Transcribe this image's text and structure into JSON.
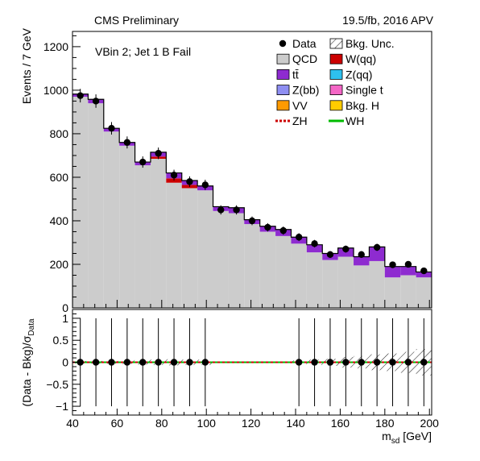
{
  "header": {
    "left": "CMS Preliminary",
    "right": "19.5/fb, 2016 APV"
  },
  "annotation": "VBin 2; Jet 1 B Fail",
  "legend": {
    "items": [
      {
        "label": "Data",
        "marker": "point",
        "color": "#000000"
      },
      {
        "label": "Bkg. Unc.",
        "marker": "hatch",
        "color": "#000000"
      },
      {
        "label": "QCD",
        "marker": "box",
        "color": "#cccccc"
      },
      {
        "label": "W(qq)",
        "marker": "box",
        "color": "#cc0000"
      },
      {
        "label": "tt̄",
        "marker": "box",
        "color": "#8e2bd0"
      },
      {
        "label": "Z(qq)",
        "marker": "box",
        "color": "#2ec0ee"
      },
      {
        "label": "Z(bb)",
        "marker": "box",
        "color": "#8e8ef2"
      },
      {
        "label": "Single t",
        "marker": "box",
        "color": "#f466c6"
      },
      {
        "label": "VV",
        "marker": "box",
        "color": "#ff9a00"
      },
      {
        "label": "Bkg. H",
        "marker": "box",
        "color": "#ffcc00"
      },
      {
        "label": "ZH",
        "marker": "dashline",
        "color": "#cc0000"
      },
      {
        "label": "WH",
        "marker": "line",
        "color": "#00bb00"
      }
    ]
  },
  "chart_data": [
    {
      "type": "bar",
      "stacked": true,
      "title": "",
      "xlabel": "",
      "ylabel": "Events / 7 GeV",
      "xlim": [
        40,
        201
      ],
      "ylim": [
        0,
        1270
      ],
      "yticks": [
        0,
        200,
        400,
        600,
        800,
        1000,
        1200
      ],
      "bin_edges": [
        40,
        47,
        54,
        61,
        68,
        75,
        82,
        89,
        96,
        103,
        110,
        117,
        124,
        131,
        138,
        145,
        152,
        159,
        166,
        173,
        180,
        187,
        194,
        201
      ],
      "series": [
        {
          "name": "QCD",
          "color": "#cccccc",
          "values": [
            970,
            940,
            810,
            745,
            655,
            685,
            575,
            550,
            540,
            445,
            435,
            385,
            350,
            330,
            295,
            255,
            220,
            235,
            195,
            215,
            140,
            150,
            140
          ]
        },
        {
          "name": "W(qq)",
          "color": "#cc0000",
          "values": [
            0,
            0,
            0,
            0,
            0,
            10,
            20,
            15,
            0,
            0,
            0,
            0,
            0,
            0,
            0,
            0,
            0,
            0,
            0,
            0,
            0,
            0,
            0
          ]
        },
        {
          "name": "tt̄",
          "color": "#8e2bd0",
          "values": [
            12,
            18,
            15,
            15,
            15,
            20,
            25,
            20,
            20,
            20,
            25,
            20,
            25,
            30,
            30,
            35,
            30,
            40,
            40,
            65,
            50,
            40,
            25
          ]
        }
      ],
      "data_points": {
        "name": "Data",
        "x": [
          43.5,
          50.5,
          57.5,
          64.5,
          71.5,
          78.5,
          85.5,
          92.5,
          99.5,
          106.5,
          113.5,
          120.5,
          127.5,
          134.5,
          141.5,
          148.5,
          155.5,
          162.5,
          169.5,
          176.5,
          183.5,
          190.5,
          197.5
        ],
        "y": [
          975,
          950,
          825,
          760,
          670,
          710,
          610,
          580,
          565,
          450,
          450,
          400,
          370,
          355,
          325,
          295,
          245,
          270,
          245,
          278,
          198,
          200,
          170
        ]
      }
    },
    {
      "type": "scatter",
      "title": "",
      "xlabel": "m_sd [GeV]",
      "ylabel": "(Data - Bkg)/σ_Data",
      "xlim": [
        40,
        201
      ],
      "ylim": [
        -1.2,
        1.2
      ],
      "yticks": [
        -1,
        -0.5,
        0,
        0.5,
        1
      ],
      "xticks": [
        40,
        60,
        80,
        100,
        120,
        140,
        160,
        180,
        200
      ],
      "points": {
        "x": [
          43.5,
          50.5,
          57.5,
          64.5,
          71.5,
          78.5,
          85.5,
          92.5,
          99.5,
          141.5,
          148.5,
          155.5,
          162.5,
          169.5,
          176.5,
          183.5,
          190.5,
          197.5
        ],
        "y": [
          0,
          0,
          0,
          0,
          0,
          0,
          0,
          0,
          0,
          0,
          0,
          0,
          0,
          0,
          0,
          0,
          0,
          0
        ],
        "err": [
          1,
          1,
          1,
          1,
          1,
          1,
          1,
          1,
          1,
          1,
          1,
          1,
          1,
          1,
          1,
          1,
          1,
          1
        ]
      },
      "unc_band": {
        "bin_edges": [
          40,
          47,
          54,
          61,
          68,
          75,
          82,
          89,
          96,
          103,
          110,
          117,
          124,
          131,
          138,
          145,
          152,
          159,
          166,
          173,
          180,
          187,
          194,
          201
        ],
        "halfwidth": [
          0.03,
          0.03,
          0.03,
          0.04,
          0.05,
          0.06,
          0.07,
          0.06,
          0.06,
          0,
          0,
          0,
          0,
          0,
          0.04,
          0.06,
          0.08,
          0.12,
          0.14,
          0.18,
          0.2,
          0.24,
          0.3
        ]
      }
    }
  ]
}
